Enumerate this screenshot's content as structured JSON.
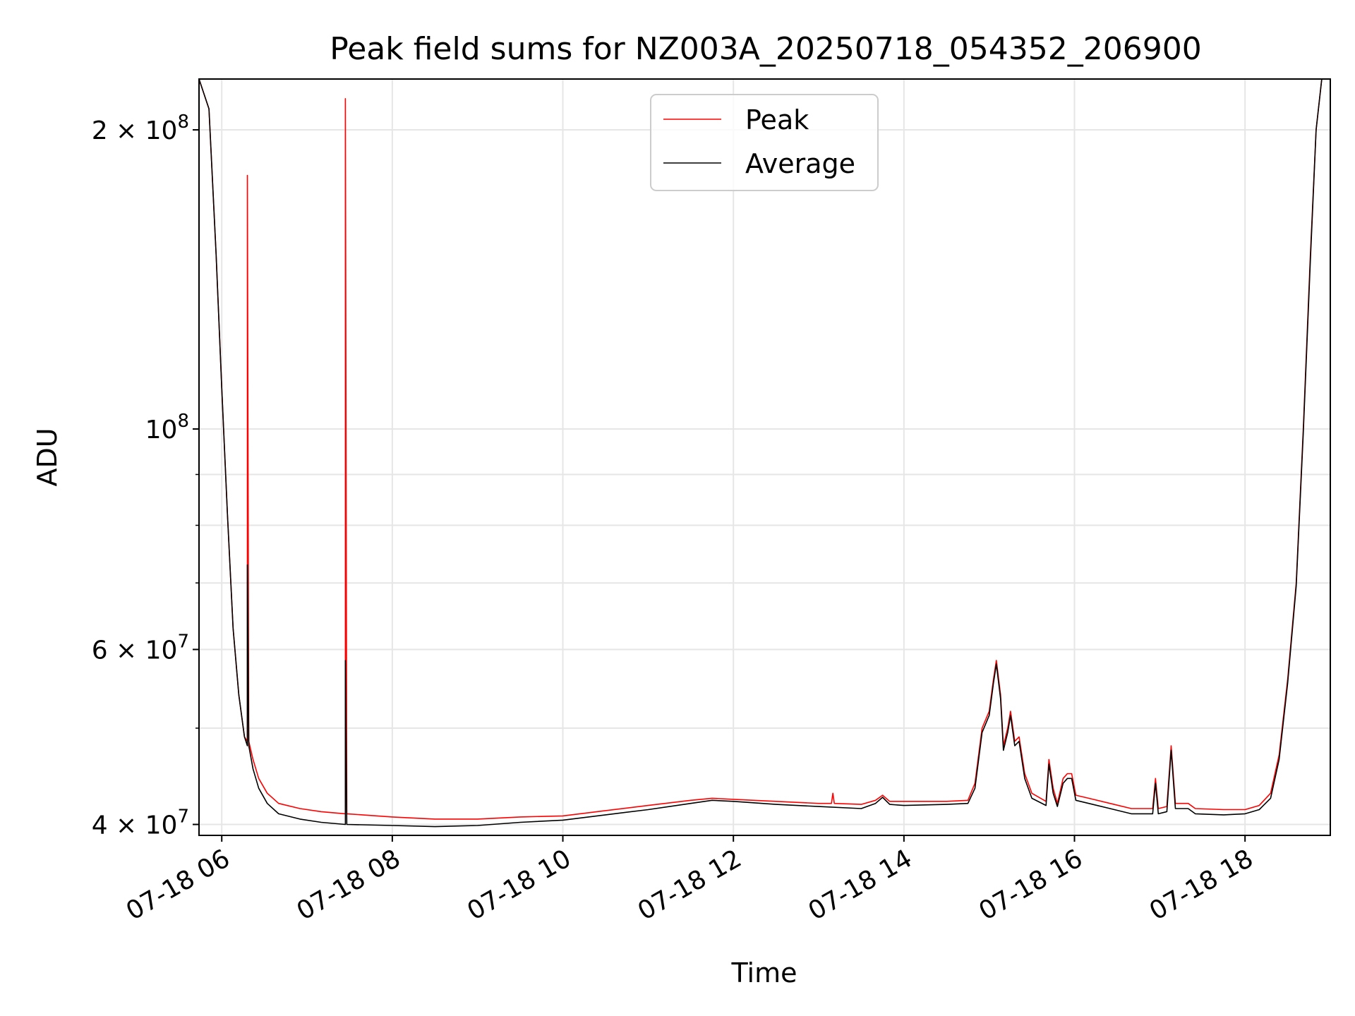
{
  "chart_data": {
    "type": "line",
    "title": "Peak field sums for NZ003A_20250718_054352_206900",
    "xlabel": "Time",
    "ylabel": "ADU",
    "yscale": "log",
    "ylim": [
      39000000,
      225000000
    ],
    "xlim": [
      "07-18 05:44",
      "07-18 19:00"
    ],
    "grid": true,
    "legend_position": "top-center",
    "x_ticks": [
      "07-18 06",
      "07-18 08",
      "07-18 10",
      "07-18 12",
      "07-18 14",
      "07-18 16",
      "07-18 18"
    ],
    "y_ticks": [
      {
        "value": 40000000,
        "mantissa": "4",
        "exp": "7"
      },
      {
        "value": 60000000,
        "mantissa": "6",
        "exp": "7"
      },
      {
        "value": 100000000,
        "mantissa": "",
        "exp": "8"
      },
      {
        "value": 200000000,
        "mantissa": "2",
        "exp": "8"
      }
    ],
    "series": [
      {
        "name": "Peak",
        "color": "#ff0000",
        "points": [
          [
            "07-18 05:44",
            225000000
          ],
          [
            "07-18 05:51",
            210000000
          ],
          [
            "07-18 05:56",
            150000000
          ],
          [
            "07-18 06:00",
            110000000
          ],
          [
            "07-18 06:04",
            82000000
          ],
          [
            "07-18 06:08",
            63000000
          ],
          [
            "07-18 06:12",
            54000000
          ],
          [
            "07-18 06:16",
            49000000
          ],
          [
            "07-18 06:18",
            48500000
          ],
          [
            "07-18 06:18",
            180000000
          ],
          [
            "07-18 06:19",
            48500000
          ],
          [
            "07-18 06:22",
            46500000
          ],
          [
            "07-18 06:26",
            44500000
          ],
          [
            "07-18 06:32",
            43000000
          ],
          [
            "07-18 06:40",
            42000000
          ],
          [
            "07-18 06:55",
            41500000
          ],
          [
            "07-18 07:10",
            41200000
          ],
          [
            "07-18 07:27",
            41000000
          ],
          [
            "07-18 07:27",
            215000000
          ],
          [
            "07-18 07:28",
            41000000
          ],
          [
            "07-18 08:00",
            40700000
          ],
          [
            "07-18 08:30",
            40500000
          ],
          [
            "07-18 09:00",
            40500000
          ],
          [
            "07-18 09:30",
            40700000
          ],
          [
            "07-18 10:00",
            40800000
          ],
          [
            "07-18 10:30",
            41300000
          ],
          [
            "07-18 11:00",
            41800000
          ],
          [
            "07-18 11:30",
            42300000
          ],
          [
            "07-18 11:45",
            42500000
          ],
          [
            "07-18 12:00",
            42400000
          ],
          [
            "07-18 12:30",
            42200000
          ],
          [
            "07-18 13:00",
            42000000
          ],
          [
            "07-18 13:09",
            42000000
          ],
          [
            "07-18 13:10",
            43000000
          ],
          [
            "07-18 13:11",
            42000000
          ],
          [
            "07-18 13:30",
            41900000
          ],
          [
            "07-18 13:40",
            42300000
          ],
          [
            "07-18 13:45",
            42800000
          ],
          [
            "07-18 13:50",
            42200000
          ],
          [
            "07-18 14:00",
            42200000
          ],
          [
            "07-18 14:30",
            42200000
          ],
          [
            "07-18 14:45",
            42300000
          ],
          [
            "07-18 14:50",
            44000000
          ],
          [
            "07-18 14:55",
            50000000
          ],
          [
            "07-18 15:00",
            52000000
          ],
          [
            "07-18 15:03",
            56000000
          ],
          [
            "07-18 15:05",
            58500000
          ],
          [
            "07-18 15:08",
            54000000
          ],
          [
            "07-18 15:10",
            48000000
          ],
          [
            "07-18 15:13",
            50000000
          ],
          [
            "07-18 15:15",
            52000000
          ],
          [
            "07-18 15:18",
            48500000
          ],
          [
            "07-18 15:21",
            49000000
          ],
          [
            "07-18 15:25",
            45000000
          ],
          [
            "07-18 15:30",
            43000000
          ],
          [
            "07-18 15:40",
            42200000
          ],
          [
            "07-18 15:42",
            46500000
          ],
          [
            "07-18 15:45",
            43500000
          ],
          [
            "07-18 15:48",
            42000000
          ],
          [
            "07-18 15:52",
            44500000
          ],
          [
            "07-18 15:55",
            45000000
          ],
          [
            "07-18 15:58",
            45000000
          ],
          [
            "07-18 16:01",
            42800000
          ],
          [
            "07-18 16:10",
            42500000
          ],
          [
            "07-18 16:25",
            42000000
          ],
          [
            "07-18 16:40",
            41500000
          ],
          [
            "07-18 16:55",
            41500000
          ],
          [
            "07-18 16:57",
            44500000
          ],
          [
            "07-18 16:59",
            41500000
          ],
          [
            "07-18 17:05",
            41700000
          ],
          [
            "07-18 17:08",
            48000000
          ],
          [
            "07-18 17:11",
            42000000
          ],
          [
            "07-18 17:20",
            42000000
          ],
          [
            "07-18 17:25",
            41500000
          ],
          [
            "07-18 17:45",
            41400000
          ],
          [
            "07-18 18:00",
            41400000
          ],
          [
            "07-18 18:10",
            41800000
          ],
          [
            "07-18 18:18",
            43000000
          ],
          [
            "07-18 18:24",
            47000000
          ],
          [
            "07-18 18:30",
            56000000
          ],
          [
            "07-18 18:36",
            70000000
          ],
          [
            "07-18 18:41",
            100000000
          ],
          [
            "07-18 18:46",
            150000000
          ],
          [
            "07-18 18:50",
            200000000
          ],
          [
            "07-18 18:54",
            225000000
          ],
          [
            "07-18 19:00",
            225000000
          ]
        ]
      },
      {
        "name": "Average",
        "color": "#000000",
        "points": [
          [
            "07-18 05:44",
            225000000
          ],
          [
            "07-18 05:51",
            210000000
          ],
          [
            "07-18 05:56",
            150000000
          ],
          [
            "07-18 06:00",
            110000000
          ],
          [
            "07-18 06:04",
            82000000
          ],
          [
            "07-18 06:08",
            63000000
          ],
          [
            "07-18 06:12",
            54000000
          ],
          [
            "07-18 06:16",
            49000000
          ],
          [
            "07-18 06:18",
            48000000
          ],
          [
            "07-18 06:18",
            73000000
          ],
          [
            "07-18 06:19",
            48000000
          ],
          [
            "07-18 06:22",
            45500000
          ],
          [
            "07-18 06:26",
            43500000
          ],
          [
            "07-18 06:32",
            42000000
          ],
          [
            "07-18 06:40",
            41000000
          ],
          [
            "07-18 06:55",
            40500000
          ],
          [
            "07-18 07:10",
            40200000
          ],
          [
            "07-18 07:27",
            40000000
          ],
          [
            "07-18 07:27",
            58500000
          ],
          [
            "07-18 07:28",
            40000000
          ],
          [
            "07-18 08:00",
            39900000
          ],
          [
            "07-18 08:30",
            39800000
          ],
          [
            "07-18 09:00",
            39900000
          ],
          [
            "07-18 09:30",
            40200000
          ],
          [
            "07-18 10:00",
            40400000
          ],
          [
            "07-18 10:30",
            40900000
          ],
          [
            "07-18 11:00",
            41400000
          ],
          [
            "07-18 11:30",
            42000000
          ],
          [
            "07-18 11:45",
            42300000
          ],
          [
            "07-18 12:00",
            42200000
          ],
          [
            "07-18 12:30",
            41900000
          ],
          [
            "07-18 13:00",
            41700000
          ],
          [
            "07-18 13:30",
            41500000
          ],
          [
            "07-18 13:40",
            42000000
          ],
          [
            "07-18 13:45",
            42600000
          ],
          [
            "07-18 13:50",
            41900000
          ],
          [
            "07-18 14:00",
            41800000
          ],
          [
            "07-18 14:30",
            41900000
          ],
          [
            "07-18 14:45",
            42000000
          ],
          [
            "07-18 14:50",
            43500000
          ],
          [
            "07-18 14:55",
            49500000
          ],
          [
            "07-18 15:00",
            51500000
          ],
          [
            "07-18 15:03",
            55500000
          ],
          [
            "07-18 15:05",
            58000000
          ],
          [
            "07-18 15:08",
            53500000
          ],
          [
            "07-18 15:10",
            47500000
          ],
          [
            "07-18 15:13",
            49500000
          ],
          [
            "07-18 15:15",
            51500000
          ],
          [
            "07-18 15:18",
            48000000
          ],
          [
            "07-18 15:21",
            48500000
          ],
          [
            "07-18 15:25",
            44500000
          ],
          [
            "07-18 15:30",
            42500000
          ],
          [
            "07-18 15:40",
            41800000
          ],
          [
            "07-18 15:42",
            46000000
          ],
          [
            "07-18 15:45",
            43000000
          ],
          [
            "07-18 15:48",
            41700000
          ],
          [
            "07-18 15:52",
            44000000
          ],
          [
            "07-18 15:55",
            44500000
          ],
          [
            "07-18 15:58",
            44500000
          ],
          [
            "07-18 16:01",
            42300000
          ],
          [
            "07-18 16:10",
            42000000
          ],
          [
            "07-18 16:25",
            41500000
          ],
          [
            "07-18 16:40",
            41000000
          ],
          [
            "07-18 16:55",
            41000000
          ],
          [
            "07-18 16:57",
            44000000
          ],
          [
            "07-18 16:59",
            41000000
          ],
          [
            "07-18 17:05",
            41200000
          ],
          [
            "07-18 17:08",
            47500000
          ],
          [
            "07-18 17:11",
            41500000
          ],
          [
            "07-18 17:20",
            41500000
          ],
          [
            "07-18 17:25",
            41000000
          ],
          [
            "07-18 17:45",
            40900000
          ],
          [
            "07-18 18:00",
            41000000
          ],
          [
            "07-18 18:10",
            41400000
          ],
          [
            "07-18 18:18",
            42500000
          ],
          [
            "07-18 18:24",
            46500000
          ],
          [
            "07-18 18:30",
            55500000
          ],
          [
            "07-18 18:36",
            69500000
          ],
          [
            "07-18 18:41",
            99000000
          ],
          [
            "07-18 18:46",
            148000000
          ],
          [
            "07-18 18:50",
            200000000
          ],
          [
            "07-18 18:54",
            225000000
          ],
          [
            "07-18 19:00",
            225000000
          ]
        ]
      }
    ]
  }
}
